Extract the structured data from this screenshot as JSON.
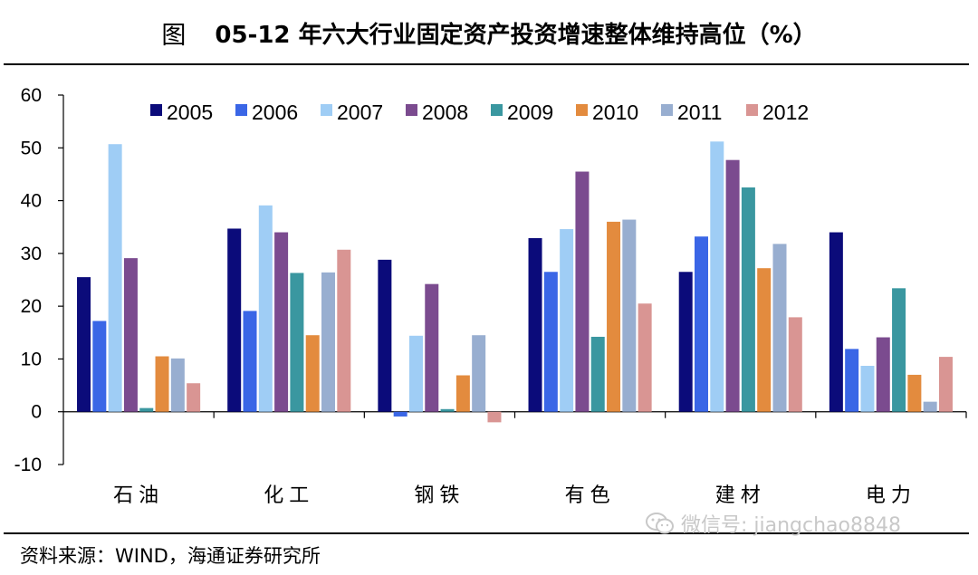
{
  "title": {
    "figure_label": "图",
    "text": "05-12 年六大行业固定资产投资增速整体维持高位（%）"
  },
  "source": "资料来源：WIND，海通证券研究所",
  "watermark": "微信号: jiangchao8848",
  "chart_data": {
    "type": "bar",
    "title": "05-12 年六大行业固定资产投资增速整体维持高位（%）",
    "xlabel": "",
    "ylabel": "",
    "ylim": [
      -10,
      60
    ],
    "yticks": [
      -10,
      0,
      10,
      20,
      30,
      40,
      50,
      60
    ],
    "grid": false,
    "legend_position": "top",
    "categories": [
      "石油",
      "化工",
      "钢铁",
      "有色",
      "建材",
      "电力"
    ],
    "series": [
      {
        "name": "2005",
        "color": "#0b0b7a",
        "values": [
          25.5,
          34.7,
          28.8,
          32.9,
          26.5,
          34.0
        ]
      },
      {
        "name": "2006",
        "color": "#3a66e6",
        "values": [
          17.2,
          19.1,
          -0.9,
          26.5,
          33.2,
          11.9
        ]
      },
      {
        "name": "2007",
        "color": "#9fcdf5",
        "values": [
          50.7,
          39.1,
          14.4,
          34.6,
          51.2,
          8.7
        ]
      },
      {
        "name": "2008",
        "color": "#7b4b8f",
        "values": [
          29.1,
          34.0,
          24.2,
          45.5,
          47.7,
          14.1
        ]
      },
      {
        "name": "2009",
        "color": "#3a97a0",
        "values": [
          0.7,
          26.3,
          0.5,
          14.2,
          42.5,
          23.4
        ]
      },
      {
        "name": "2010",
        "color": "#e38b3e",
        "values": [
          10.5,
          14.5,
          6.9,
          36.0,
          27.2,
          7.0
        ]
      },
      {
        "name": "2011",
        "color": "#98aed0",
        "values": [
          10.1,
          26.4,
          14.5,
          36.4,
          31.8,
          1.9
        ]
      },
      {
        "name": "2012",
        "color": "#d99593",
        "values": [
          5.4,
          30.7,
          -2.0,
          20.5,
          17.9,
          10.4
        ]
      }
    ]
  }
}
